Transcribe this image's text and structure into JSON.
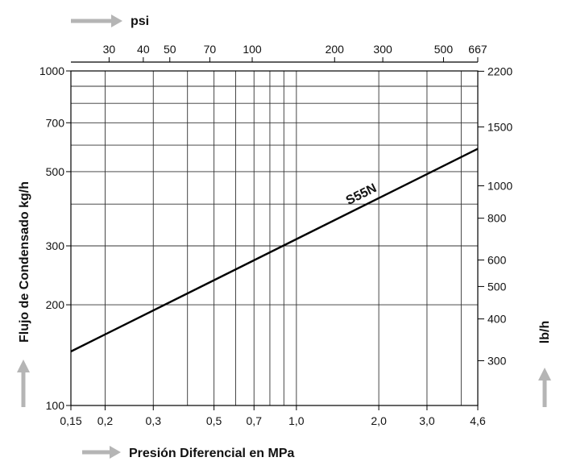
{
  "chart_data": {
    "type": "line",
    "title": "",
    "xlabel": "Presión Diferencial en MPa",
    "ylabel": "Flujo de Condensado kg/h",
    "x2label": "psi",
    "y2label": "lb/h",
    "x_scale": "log",
    "y_scale": "log",
    "xlim": [
      0.15,
      4.6
    ],
    "ylim": [
      100,
      1000
    ],
    "x_ticks": [
      {
        "value": 0.15,
        "label": "0,15"
      },
      {
        "value": 0.2,
        "label": "0,2"
      },
      {
        "value": 0.3,
        "label": "0,3"
      },
      {
        "value": 0.5,
        "label": "0,5"
      },
      {
        "value": 0.7,
        "label": "0,7"
      },
      {
        "value": 1.0,
        "label": "1,0"
      },
      {
        "value": 2.0,
        "label": "2,0"
      },
      {
        "value": 3.0,
        "label": "3,0"
      },
      {
        "value": 4.6,
        "label": "4,6"
      }
    ],
    "x_grid": [
      0.15,
      0.2,
      0.3,
      0.4,
      0.5,
      0.6,
      0.7,
      0.8,
      0.9,
      1.0,
      2.0,
      3.0,
      4.0,
      4.6
    ],
    "y_ticks": [
      {
        "value": 100,
        "label": "100"
      },
      {
        "value": 200,
        "label": "200"
      },
      {
        "value": 300,
        "label": "300"
      },
      {
        "value": 500,
        "label": "500"
      },
      {
        "value": 700,
        "label": "700"
      },
      {
        "value": 1000,
        "label": "1000"
      }
    ],
    "y_grid": [
      100,
      200,
      300,
      400,
      500,
      600,
      700,
      800,
      900,
      1000
    ],
    "x2_ticks": [
      {
        "value": 30,
        "label": "30"
      },
      {
        "value": 40,
        "label": "40"
      },
      {
        "value": 50,
        "label": "50"
      },
      {
        "value": 70,
        "label": "70"
      },
      {
        "value": 100,
        "label": "100"
      },
      {
        "value": 200,
        "label": "200"
      },
      {
        "value": 300,
        "label": "300"
      },
      {
        "value": 500,
        "label": "500"
      },
      {
        "value": 667,
        "label": "667"
      }
    ],
    "y2_ticks": [
      {
        "value": 300,
        "label": "300"
      },
      {
        "value": 400,
        "label": "400"
      },
      {
        "value": 500,
        "label": "500"
      },
      {
        "value": 600,
        "label": "600"
      },
      {
        "value": 800,
        "label": "800"
      },
      {
        "value": 1000,
        "label": "1000"
      },
      {
        "value": 1500,
        "label": "1500"
      },
      {
        "value": 2200,
        "label": "2200"
      }
    ],
    "grid": true,
    "series": [
      {
        "name": "S55N",
        "x": [
          0.15,
          4.6
        ],
        "y": [
          145,
          585
        ]
      }
    ],
    "line_color": "#000000",
    "grid_color": "#333333",
    "arrow_color": "#b5b5b5"
  }
}
